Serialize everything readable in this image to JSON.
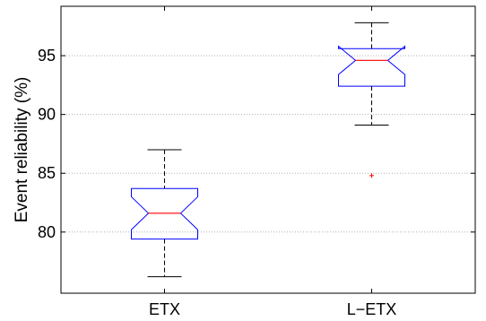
{
  "chart_data": {
    "type": "boxplot",
    "title": "",
    "xlabel": "",
    "ylabel": "Event reliability (%)",
    "categories": [
      "ETX",
      "L−ETX"
    ],
    "ylim": [
      74.8,
      99.2
    ],
    "yticks": [
      80,
      85,
      90,
      95
    ],
    "ytick_labels": [
      "80",
      "85",
      "90",
      "95"
    ],
    "grid": "y-dotted",
    "boxes": [
      {
        "label": "ETX",
        "whisker_low": 76.2,
        "q1": 79.4,
        "median": 81.6,
        "q3": 83.7,
        "whisker_high": 87.0,
        "notch_low": 80.2,
        "notch_high": 83.0,
        "outliers": []
      },
      {
        "label": "L−ETX",
        "whisker_low": 89.1,
        "q1": 92.4,
        "median": 94.6,
        "q3": 95.6,
        "whisker_high": 97.8,
        "notch_low": 93.4,
        "notch_high": 95.8,
        "outliers": [
          84.8
        ]
      }
    ],
    "colors": {
      "box": "#0000ff",
      "median": "#ff0000",
      "whisker": "#000000",
      "outlier": "#ff0000",
      "grid": "#b0b0b0"
    }
  }
}
